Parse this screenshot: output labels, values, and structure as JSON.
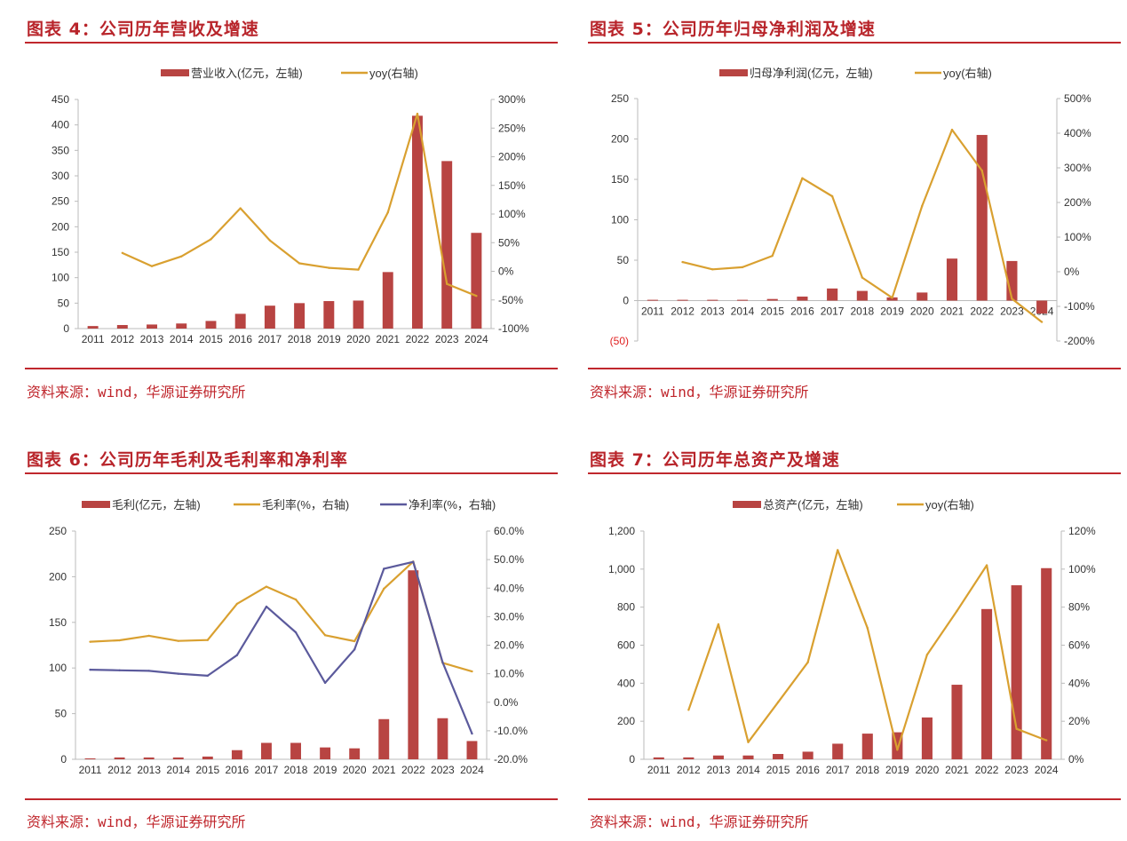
{
  "colors": {
    "bar": "#b84442",
    "yoy": "#d9a030",
    "net_margin": "#5b5a9c",
    "accent": "#c0272d",
    "negative_tick": "#e02020"
  },
  "source_label": "资料来源：wind，华源证券研究所",
  "chart_data": [
    {
      "type": "bar+line",
      "title": "图表 4：公司历年营收及增速",
      "source": "资料来源：wind，华源证券研究所",
      "categories": [
        "2011",
        "2012",
        "2013",
        "2014",
        "2015",
        "2016",
        "2017",
        "2018",
        "2019",
        "2020",
        "2021",
        "2022",
        "2023",
        "2024"
      ],
      "bars": {
        "name": "营业收入(亿元，左轴)",
        "values": [
          5,
          7,
          8,
          10,
          15,
          29,
          45,
          50,
          54,
          55,
          111,
          418,
          329,
          188
        ]
      },
      "lines": [
        {
          "name": "yoy(右轴)",
          "axis": "right",
          "color": "yoy",
          "values": [
            null,
            32,
            9,
            26,
            56,
            110,
            54,
            14,
            6,
            3,
            103,
            275,
            -22,
            -43
          ]
        }
      ],
      "y_left": {
        "lim": [
          0,
          450
        ],
        "ticks": [
          0,
          50,
          100,
          150,
          200,
          250,
          300,
          350,
          400,
          450
        ],
        "labels": [
          "0",
          "50",
          "100",
          "150",
          "200",
          "250",
          "300",
          "350",
          "400",
          "450"
        ]
      },
      "y_right": {
        "lim": [
          -100,
          300
        ],
        "ticks": [
          -100,
          -50,
          0,
          50,
          100,
          150,
          200,
          250,
          300
        ],
        "labels": [
          "-100%",
          "-50%",
          "0%",
          "50%",
          "100%",
          "150%",
          "200%",
          "250%",
          "300%"
        ]
      },
      "legend": "top",
      "grid": false
    },
    {
      "type": "bar+line",
      "title": "图表 5：公司历年归母净利润及增速",
      "source": "资料来源：wind，华源证券研究所",
      "categories": [
        "2011",
        "2012",
        "2013",
        "2014",
        "2015",
        "2016",
        "2017",
        "2018",
        "2019",
        "2020",
        "2021",
        "2022",
        "2023",
        "2024"
      ],
      "bars": {
        "name": "归母净利润(亿元，左轴)",
        "values": [
          1,
          1,
          1,
          1,
          2,
          5,
          15,
          12,
          4,
          10,
          52,
          205,
          49,
          -16
        ]
      },
      "lines": [
        {
          "name": "yoy(右轴)",
          "axis": "right",
          "color": "yoy",
          "values": [
            null,
            28,
            7,
            13,
            46,
            270,
            218,
            -17,
            -75,
            190,
            410,
            292,
            -78,
            -145
          ]
        }
      ],
      "y_left": {
        "lim": [
          -50,
          250
        ],
        "ticks": [
          -50,
          0,
          50,
          100,
          150,
          200,
          250
        ],
        "labels": [
          "(50)",
          "0",
          "50",
          "100",
          "150",
          "200",
          "250"
        ]
      },
      "y_right": {
        "lim": [
          -200,
          500
        ],
        "ticks": [
          -200,
          -100,
          0,
          100,
          200,
          300,
          400,
          500
        ],
        "labels": [
          "-200%",
          "-100%",
          "0%",
          "100%",
          "200%",
          "300%",
          "400%",
          "500%"
        ]
      },
      "legend": "top",
      "grid": false
    },
    {
      "type": "bar+line",
      "title": "图表 6：公司历年毛利及毛利率和净利率",
      "source": "资料来源：wind，华源证券研究所",
      "categories": [
        "2011",
        "2012",
        "2013",
        "2014",
        "2015",
        "2016",
        "2017",
        "2018",
        "2019",
        "2020",
        "2021",
        "2022",
        "2023",
        "2024"
      ],
      "bars": {
        "name": "毛利(亿元，左轴)",
        "values": [
          1,
          2,
          2,
          2,
          3,
          10,
          18,
          18,
          13,
          12,
          44,
          207,
          45,
          20
        ]
      },
      "lines": [
        {
          "name": "毛利率(%，右轴)",
          "axis": "right",
          "color": "yoy",
          "values": [
            21.2,
            21.7,
            23.3,
            21.5,
            21.8,
            34.5,
            40.5,
            36.0,
            23.5,
            21.4,
            39.8,
            49.3,
            13.8,
            10.8
          ]
        },
        {
          "name": "净利率(%，右轴)",
          "axis": "right",
          "color": "net_margin",
          "values": [
            11.4,
            11.2,
            11.0,
            10.0,
            9.3,
            16.5,
            33.5,
            24.5,
            6.8,
            18.5,
            46.8,
            49.2,
            14.0,
            -11.0
          ]
        }
      ],
      "y_left": {
        "lim": [
          0,
          250
        ],
        "ticks": [
          0,
          50,
          100,
          150,
          200,
          250
        ],
        "labels": [
          "0",
          "50",
          "100",
          "150",
          "200",
          "250"
        ]
      },
      "y_right": {
        "lim": [
          -20,
          60
        ],
        "ticks": [
          -20,
          -10,
          0,
          10,
          20,
          30,
          40,
          50,
          60
        ],
        "labels": [
          "-20.0%",
          "-10.0%",
          "0.0%",
          "10.0%",
          "20.0%",
          "30.0%",
          "40.0%",
          "50.0%",
          "60.0%"
        ]
      },
      "legend": "top",
      "grid": false
    },
    {
      "type": "bar+line",
      "title": "图表 7：公司历年总资产及增速",
      "source": "资料来源：wind，华源证券研究所",
      "categories": [
        "2011",
        "2012",
        "2013",
        "2014",
        "2015",
        "2016",
        "2017",
        "2018",
        "2019",
        "2020",
        "2021",
        "2022",
        "2023",
        "2024"
      ],
      "bars": {
        "name": "总资产(亿元，左轴)",
        "values": [
          10,
          10,
          20,
          20,
          28,
          40,
          82,
          135,
          142,
          220,
          392,
          790,
          915,
          1005
        ]
      },
      "lines": [
        {
          "name": "yoy(右轴)",
          "axis": "right",
          "color": "yoy",
          "values": [
            null,
            26,
            71,
            9,
            30,
            51,
            110,
            69,
            5,
            55,
            78,
            102,
            16,
            10
          ]
        }
      ],
      "y_left": {
        "lim": [
          0,
          1200
        ],
        "ticks": [
          0,
          200,
          400,
          600,
          800,
          1000,
          1200
        ],
        "labels": [
          "0",
          "200",
          "400",
          "600",
          "800",
          "1,000",
          "1,200"
        ]
      },
      "y_right": {
        "lim": [
          0,
          120
        ],
        "ticks": [
          0,
          20,
          40,
          60,
          80,
          100,
          120
        ],
        "labels": [
          "0%",
          "20%",
          "40%",
          "60%",
          "80%",
          "100%",
          "120%"
        ]
      },
      "legend": "top",
      "grid": false
    }
  ]
}
